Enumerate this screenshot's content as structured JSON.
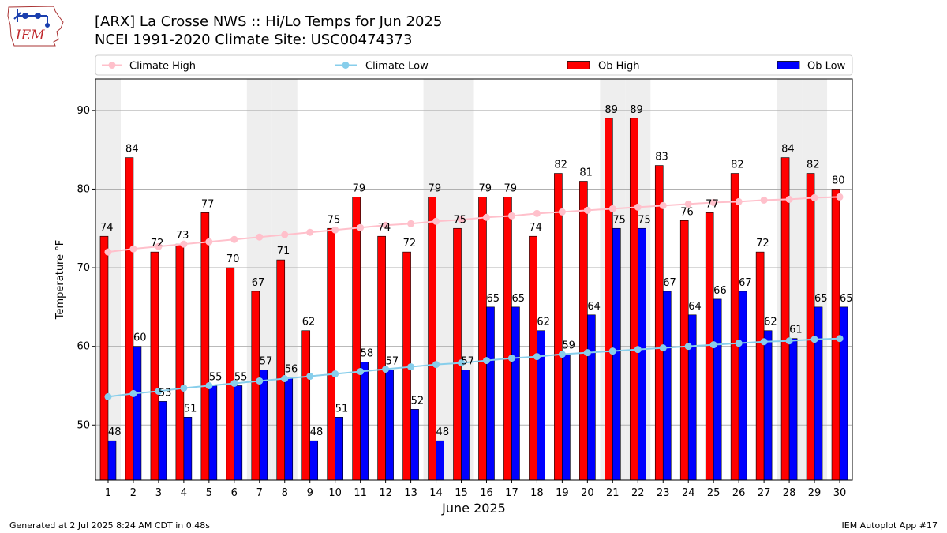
{
  "header": {
    "title_line1": "[ARX] La Crosse NWS :: Hi/Lo Temps for Jun 2025",
    "title_line2": "NCEI 1991-2020 Climate Site: USC00474373",
    "logo_text": "IEM"
  },
  "footer": {
    "generated": "Generated at 2 Jul 2025 8:24 AM CDT in 0.48s",
    "app": "IEM Autoplot App #17"
  },
  "colors": {
    "ob_high": "#ff0000",
    "ob_low": "#0000ff",
    "climate_high": "#ffc0cb",
    "climate_low": "#87ceeb",
    "weekend_shade": "#eeeeee",
    "grid": "#b0b0b0"
  },
  "chart_data": {
    "type": "bar",
    "xlabel": "June 2025",
    "ylabel": "Temperature °F",
    "ylim": [
      43,
      94
    ],
    "yticks": [
      50,
      60,
      70,
      80,
      90
    ],
    "grid": "horizontal",
    "legend_position": "top",
    "categories": [
      "1",
      "2",
      "3",
      "4",
      "5",
      "6",
      "7",
      "8",
      "9",
      "10",
      "11",
      "12",
      "13",
      "14",
      "15",
      "16",
      "17",
      "18",
      "19",
      "20",
      "21",
      "22",
      "23",
      "24",
      "25",
      "26",
      "27",
      "28",
      "29",
      "30"
    ],
    "shaded_days": [
      1,
      7,
      8,
      14,
      15,
      21,
      22,
      28,
      29
    ],
    "series": [
      {
        "name": "Climate High",
        "kind": "line",
        "color": "#ffc0cb",
        "values": [
          72.0,
          72.4,
          72.7,
          73.0,
          73.3,
          73.6,
          73.9,
          74.2,
          74.5,
          74.8,
          75.1,
          75.4,
          75.6,
          75.9,
          76.1,
          76.4,
          76.6,
          76.9,
          77.1,
          77.3,
          77.5,
          77.7,
          77.9,
          78.1,
          78.3,
          78.4,
          78.6,
          78.7,
          78.9,
          79.0
        ]
      },
      {
        "name": "Climate Low",
        "kind": "line",
        "color": "#87ceeb",
        "values": [
          53.6,
          54.0,
          54.3,
          54.7,
          55.0,
          55.3,
          55.6,
          55.9,
          56.2,
          56.5,
          56.8,
          57.1,
          57.4,
          57.7,
          57.9,
          58.2,
          58.5,
          58.7,
          59.0,
          59.2,
          59.4,
          59.6,
          59.8,
          60.0,
          60.2,
          60.4,
          60.6,
          60.7,
          60.9,
          61.0
        ]
      },
      {
        "name": "Ob High",
        "kind": "bar",
        "color": "#ff0000",
        "values": [
          74,
          84,
          72,
          73,
          77,
          70,
          67,
          71,
          62,
          75,
          79,
          74,
          72,
          79,
          75,
          79,
          79,
          74,
          82,
          81,
          89,
          89,
          83,
          76,
          77,
          82,
          72,
          84,
          82,
          80
        ]
      },
      {
        "name": "Ob Low",
        "kind": "bar",
        "color": "#0000ff",
        "values": [
          48,
          60,
          53,
          51,
          55,
          55,
          57,
          56,
          48,
          51,
          58,
          57,
          52,
          48,
          57,
          65,
          65,
          62,
          59,
          64,
          75,
          75,
          67,
          64,
          66,
          67,
          62,
          61,
          65,
          65
        ]
      }
    ]
  }
}
